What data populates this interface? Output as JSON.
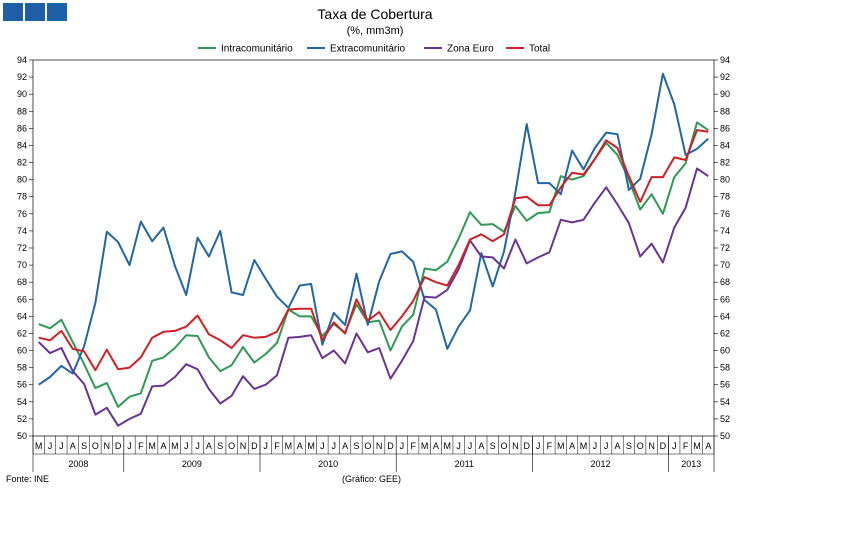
{
  "chart_data": {
    "type": "line",
    "title": "Taxa de Cobertura",
    "subtitle": "(%, mm3m)",
    "source": "Fonte: INE",
    "credit": "(Gráfico: GEE)",
    "ylim": [
      50,
      94
    ],
    "yticks": [
      50,
      52,
      54,
      56,
      58,
      60,
      62,
      64,
      66,
      68,
      70,
      72,
      74,
      76,
      78,
      80,
      82,
      84,
      86,
      88,
      90,
      92,
      94
    ],
    "grid": false,
    "legend_position": "top",
    "month_labels": [
      "M",
      "J",
      "J",
      "A",
      "S",
      "O",
      "N",
      "D",
      "J",
      "F",
      "M",
      "A",
      "M",
      "J",
      "J",
      "A",
      "S",
      "O",
      "N",
      "D",
      "J",
      "F",
      "M",
      "A",
      "M",
      "J",
      "J",
      "A",
      "S",
      "O",
      "N",
      "D",
      "J",
      "F",
      "M",
      "A",
      "M",
      "J",
      "J",
      "A",
      "S",
      "O",
      "N",
      "D",
      "J",
      "F",
      "M",
      "A",
      "M",
      "J",
      "J",
      "A",
      "S",
      "O",
      "N",
      "D",
      "J",
      "F",
      "M",
      "A"
    ],
    "years": [
      {
        "label": "2008",
        "start": 0,
        "end": 8
      },
      {
        "label": "2009",
        "start": 8,
        "end": 20
      },
      {
        "label": "2010",
        "start": 20,
        "end": 32
      },
      {
        "label": "2011",
        "start": 32,
        "end": 44
      },
      {
        "label": "2012",
        "start": 44,
        "end": 56
      },
      {
        "label": "2013",
        "start": 56,
        "end": 60
      }
    ],
    "series": [
      {
        "name": "Intracomunitário",
        "color": "#2e9a54",
        "values": [
          63.1,
          62.6,
          63.6,
          61.0,
          58.4,
          55.6,
          56.2,
          53.4,
          54.6,
          55.0,
          58.8,
          59.2,
          60.3,
          61.8,
          61.7,
          59.2,
          57.6,
          58.3,
          60.4,
          58.6,
          59.6,
          60.9,
          64.8,
          64.0,
          64.0,
          61.7,
          63.1,
          62.1,
          65.4,
          63.3,
          63.5,
          60.0,
          62.8,
          64.2,
          69.6,
          69.4,
          70.4,
          73.1,
          76.2,
          74.7,
          74.8,
          73.9,
          76.9,
          75.2,
          76.1,
          76.2,
          80.4,
          80.0,
          80.4,
          82.4,
          84.3,
          82.9,
          80.0,
          76.5,
          78.3,
          76.0,
          80.3,
          81.9,
          86.7,
          85.8
        ]
      },
      {
        "name": "Extracomunitário",
        "color": "#2166a6",
        "values": [
          56.0,
          56.9,
          58.2,
          57.3,
          60.5,
          65.6,
          73.9,
          72.7,
          70.0,
          75.1,
          72.8,
          74.4,
          69.9,
          66.5,
          73.2,
          71.0,
          74.0,
          66.8,
          66.5,
          70.6,
          68.4,
          66.3,
          65.0,
          67.6,
          67.8,
          60.7,
          64.4,
          63.0,
          69.0,
          63.0,
          68.1,
          71.3,
          71.6,
          70.4,
          65.9,
          64.8,
          60.2,
          62.8,
          64.7,
          71.4,
          67.5,
          71.6,
          78.5,
          86.5,
          79.6,
          79.6,
          78.3,
          83.4,
          81.2,
          83.7,
          85.5,
          85.3,
          78.8,
          80.1,
          85.3,
          92.4,
          88.8,
          82.9,
          83.6,
          84.8
        ]
      },
      {
        "name": "Zona Euro",
        "color": "#6b3493",
        "values": [
          61.0,
          59.7,
          60.3,
          57.6,
          56.1,
          52.5,
          53.3,
          51.2,
          52.0,
          52.6,
          55.8,
          55.9,
          56.9,
          58.4,
          57.8,
          55.5,
          53.8,
          54.7,
          57.0,
          55.5,
          56.0,
          57.1,
          61.5,
          61.6,
          61.8,
          59.1,
          60.0,
          58.5,
          62.0,
          59.8,
          60.3,
          56.7,
          58.8,
          61.1,
          66.3,
          66.2,
          67.1,
          69.5,
          72.9,
          71.0,
          70.9,
          69.6,
          73.0,
          70.2,
          70.9,
          71.5,
          75.3,
          75.0,
          75.3,
          77.3,
          79.1,
          77.1,
          74.9,
          71.0,
          72.5,
          70.3,
          74.4,
          76.7,
          81.3,
          80.4
        ]
      },
      {
        "name": "Total",
        "color": "#d11f26",
        "values": [
          61.5,
          61.2,
          62.3,
          60.2,
          59.9,
          57.7,
          60.1,
          57.8,
          58.0,
          59.2,
          61.5,
          62.2,
          62.3,
          62.8,
          64.1,
          61.9,
          61.2,
          60.3,
          61.8,
          61.5,
          61.6,
          62.2,
          64.8,
          64.9,
          64.9,
          61.2,
          63.3,
          62.0,
          66.0,
          63.5,
          64.5,
          62.4,
          64.0,
          65.8,
          68.6,
          68.0,
          67.6,
          70.0,
          73.0,
          73.6,
          72.8,
          73.6,
          77.8,
          78.0,
          77.0,
          77.0,
          79.1,
          80.8,
          80.6,
          82.4,
          84.6,
          83.7,
          80.4,
          77.4,
          80.3,
          80.3,
          82.6,
          82.3,
          85.8,
          85.6
        ]
      }
    ]
  }
}
